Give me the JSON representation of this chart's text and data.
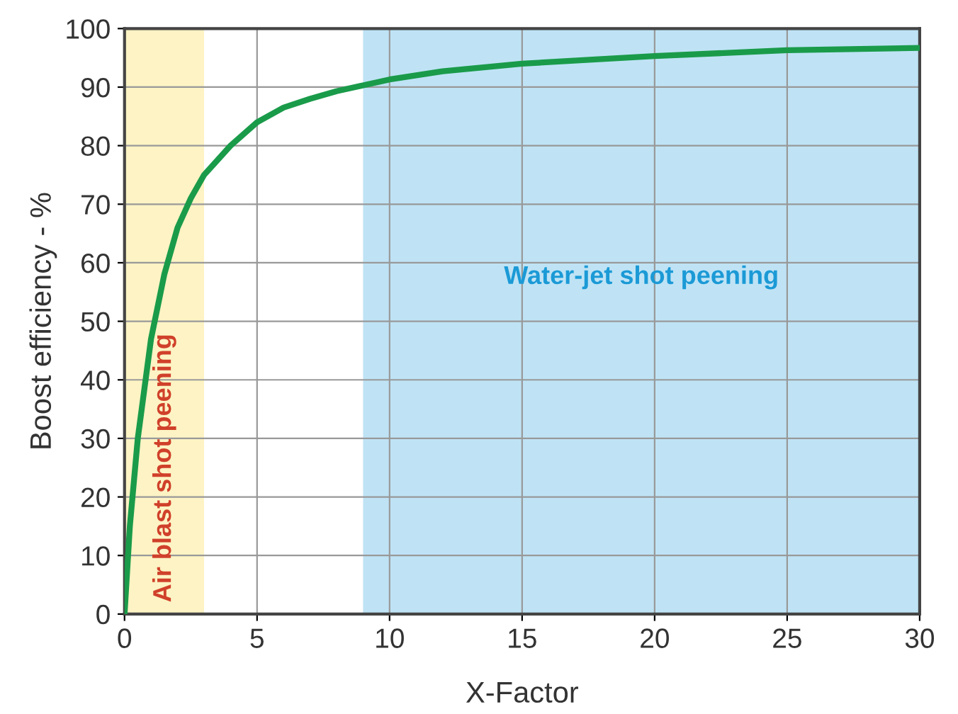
{
  "chart_data": {
    "type": "line",
    "xlabel": "X-Factor",
    "ylabel": "Boost efficiency - %",
    "x": [
      0,
      0.2,
      0.5,
      1,
      1.5,
      2,
      2.5,
      3,
      4,
      5,
      6,
      7,
      8,
      9,
      10,
      12,
      15,
      18,
      20,
      25,
      30
    ],
    "series": [
      {
        "color": "#1a9b4a",
        "values": [
          0,
          15,
          30,
          47,
          58,
          66,
          71,
          75,
          80,
          84,
          86.5,
          88,
          89.3,
          90.3,
          91.3,
          92.7,
          94,
          94.8,
          95.3,
          96.3,
          96.7
        ]
      }
    ],
    "xlim": [
      0,
      30
    ],
    "xticks": [
      0,
      5,
      10,
      15,
      20,
      25,
      30
    ],
    "ylim": [
      0,
      100
    ],
    "yticks": [
      0,
      10,
      20,
      30,
      40,
      50,
      60,
      70,
      80,
      90,
      100
    ],
    "bands": [
      {
        "axis": "x",
        "from": 0,
        "to": 3,
        "label": "Air blast shot peening",
        "color": "#fdf3c4"
      },
      {
        "axis": "x",
        "from": 9,
        "to": 30,
        "label": "Water-jet shot peening",
        "color": "#bfe3f5"
      }
    ],
    "grid": true,
    "marker": "none",
    "line_style": "solid"
  }
}
